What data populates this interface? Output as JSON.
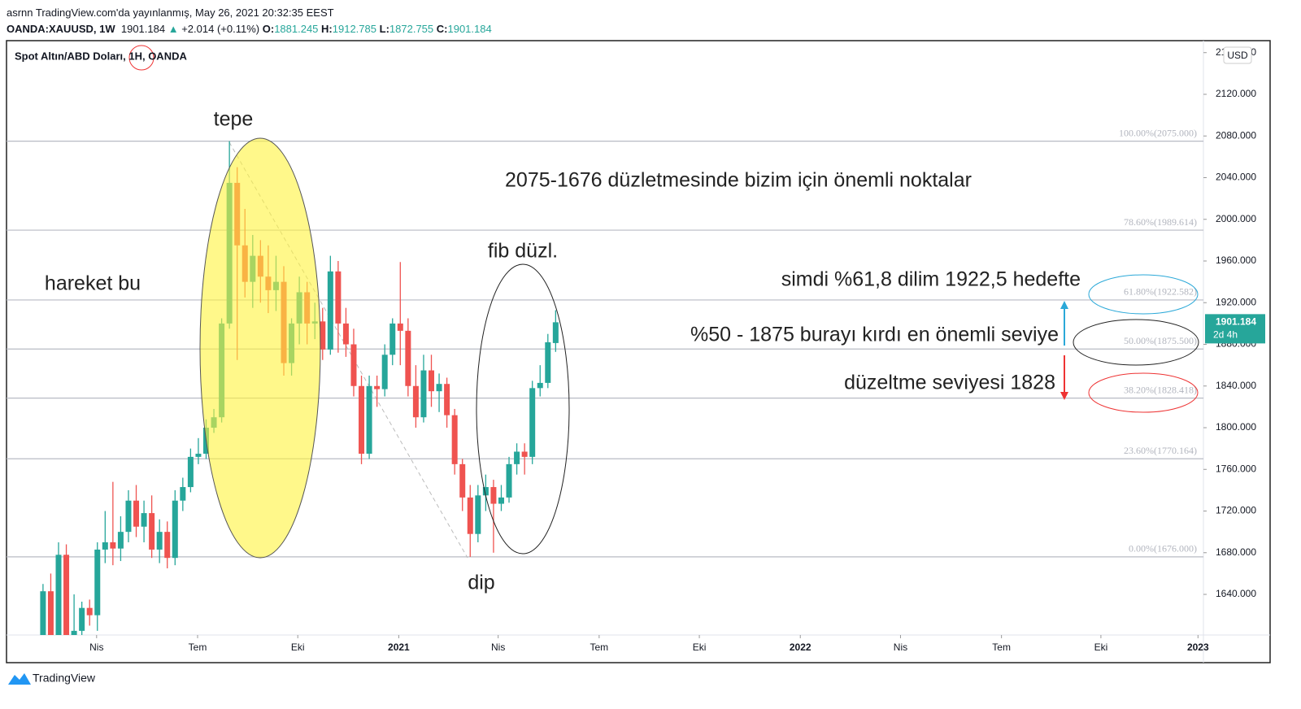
{
  "header": {
    "published": "asrnn TradingView.com'da yayınlanmış, May 26, 2021 20:32:35 EEST",
    "symbol": "OANDA:XAUUSD, 1W",
    "last": "1901.184",
    "arrow": "▲",
    "change": "+2.014 (+0.11%)",
    "o_label": "O:",
    "o": "1881.245",
    "h_label": "H:",
    "h": "1912.785",
    "l_label": "L:",
    "l": "1872.755",
    "c_label": "C:",
    "c": "1901.184"
  },
  "footer": "TradingView",
  "chart_data": {
    "type": "candlestick",
    "title": "Spot Altın/ABD Doları, 1H, OANDA",
    "currency": "USD",
    "up_color": "#26a69a",
    "down_color": "#ef5350",
    "x": [
      0,
      1,
      2,
      3,
      4,
      5,
      6,
      7,
      8,
      9,
      10,
      11,
      12,
      13,
      14,
      15,
      16,
      17,
      18,
      19,
      20,
      21,
      22,
      23,
      24,
      25,
      26,
      27,
      28,
      29,
      30,
      31,
      32,
      33,
      34,
      35,
      36,
      37,
      38,
      39,
      40,
      41,
      42,
      43,
      44,
      45,
      46,
      47,
      48,
      49,
      50,
      51,
      52,
      53,
      54,
      55,
      56,
      57,
      58,
      59,
      60,
      61,
      62,
      63,
      64,
      65,
      66
    ],
    "candles": [
      [
        1590,
        1650,
        1580,
        1643
      ],
      [
        1643,
        1660,
        1580,
        1590
      ],
      [
        1590,
        1690,
        1570,
        1678
      ],
      [
        1678,
        1688,
        1580,
        1590
      ],
      [
        1590,
        1640,
        1575,
        1605
      ],
      [
        1605,
        1633,
        1598,
        1627
      ],
      [
        1627,
        1635,
        1610,
        1620
      ],
      [
        1620,
        1690,
        1605,
        1683
      ],
      [
        1683,
        1720,
        1670,
        1690
      ],
      [
        1690,
        1748,
        1668,
        1684
      ],
      [
        1684,
        1715,
        1672,
        1700
      ],
      [
        1700,
        1740,
        1690,
        1730
      ],
      [
        1730,
        1745,
        1695,
        1705
      ],
      [
        1705,
        1730,
        1690,
        1718
      ],
      [
        1718,
        1735,
        1675,
        1683
      ],
      [
        1683,
        1712,
        1670,
        1700
      ],
      [
        1700,
        1710,
        1665,
        1675
      ],
      [
        1675,
        1740,
        1668,
        1730
      ],
      [
        1730,
        1752,
        1720,
        1743
      ],
      [
        1743,
        1780,
        1738,
        1772
      ],
      [
        1772,
        1790,
        1765,
        1775
      ],
      [
        1775,
        1808,
        1770,
        1800
      ],
      [
        1800,
        1818,
        1795,
        1810
      ],
      [
        1810,
        1905,
        1805,
        1900
      ],
      [
        1900,
        2075,
        1895,
        2035
      ],
      [
        2035,
        2050,
        1865,
        1975
      ],
      [
        1975,
        2010,
        1925,
        1940
      ],
      [
        1940,
        1985,
        1915,
        1965
      ],
      [
        1965,
        1980,
        1920,
        1945
      ],
      [
        1945,
        1975,
        1910,
        1932
      ],
      [
        1932,
        1965,
        1912,
        1940
      ],
      [
        1940,
        1955,
        1850,
        1862
      ],
      [
        1862,
        1905,
        1850,
        1900
      ],
      [
        1900,
        1945,
        1880,
        1930
      ],
      [
        1930,
        1940,
        1880,
        1900
      ],
      [
        1900,
        1920,
        1885,
        1902
      ],
      [
        1902,
        1915,
        1865,
        1875
      ],
      [
        1875,
        1965,
        1870,
        1950
      ],
      [
        1950,
        1960,
        1872,
        1900
      ],
      [
        1900,
        1915,
        1868,
        1880
      ],
      [
        1880,
        1895,
        1830,
        1840
      ],
      [
        1840,
        1850,
        1765,
        1775
      ],
      [
        1775,
        1850,
        1770,
        1840
      ],
      [
        1840,
        1850,
        1820,
        1837
      ],
      [
        1837,
        1880,
        1830,
        1870
      ],
      [
        1870,
        1905,
        1860,
        1900
      ],
      [
        1900,
        1959,
        1860,
        1893
      ],
      [
        1893,
        1905,
        1830,
        1840
      ],
      [
        1840,
        1860,
        1800,
        1810
      ],
      [
        1810,
        1870,
        1805,
        1855
      ],
      [
        1855,
        1870,
        1820,
        1835
      ],
      [
        1835,
        1852,
        1815,
        1842
      ],
      [
        1842,
        1848,
        1800,
        1812
      ],
      [
        1812,
        1818,
        1755,
        1765
      ],
      [
        1765,
        1770,
        1720,
        1733
      ],
      [
        1733,
        1745,
        1676,
        1698
      ],
      [
        1698,
        1745,
        1690,
        1735
      ],
      [
        1735,
        1755,
        1720,
        1743
      ],
      [
        1743,
        1750,
        1680,
        1727
      ],
      [
        1727,
        1745,
        1720,
        1733
      ],
      [
        1733,
        1772,
        1728,
        1765
      ],
      [
        1765,
        1785,
        1755,
        1777
      ],
      [
        1777,
        1785,
        1755,
        1772
      ],
      [
        1772,
        1845,
        1765,
        1838
      ],
      [
        1838,
        1860,
        1830,
        1843
      ],
      [
        1843,
        1890,
        1838,
        1882
      ],
      [
        1881.245,
        1912.785,
        1872.755,
        1901.184
      ]
    ],
    "xlim": [
      -4.7,
      149.4
    ],
    "xticks": [
      {
        "value": 6.9,
        "label": "Nis"
      },
      {
        "value": 19.9,
        "label": "Tem"
      },
      {
        "value": 32.8,
        "label": "Eki"
      },
      {
        "value": 45.8,
        "label": "2021"
      },
      {
        "value": 58.6,
        "label": "Nis"
      },
      {
        "value": 71.6,
        "label": "Tem"
      },
      {
        "value": 84.5,
        "label": "Eki"
      },
      {
        "value": 97.5,
        "label": "2022"
      },
      {
        "value": 110.4,
        "label": "Nis"
      },
      {
        "value": 123.4,
        "label": "Tem"
      },
      {
        "value": 136.2,
        "label": "Eki"
      },
      {
        "value": 148.7,
        "label": "2023"
      }
    ],
    "ylim": [
      1601,
      2171.5
    ],
    "yticks": [
      {
        "value": 1640,
        "label": "1640.000"
      },
      {
        "value": 1680,
        "label": "1680.000"
      },
      {
        "value": 1720,
        "label": "1720.000"
      },
      {
        "value": 1760,
        "label": "1760.000"
      },
      {
        "value": 1800,
        "label": "1800.000"
      },
      {
        "value": 1840,
        "label": "1840.000"
      },
      {
        "value": 1880,
        "label": "1880.000"
      },
      {
        "value": 1920,
        "label": "1920.000"
      },
      {
        "value": 1960,
        "label": "1960.000"
      },
      {
        "value": 2000,
        "label": "2000.000"
      },
      {
        "value": 2040,
        "label": "2040.000"
      },
      {
        "value": 2080,
        "label": "2080.000"
      },
      {
        "value": 2120,
        "label": "2120.000"
      },
      {
        "value": 2160,
        "label": "2160.000"
      }
    ],
    "fib_levels": [
      {
        "value": 2075,
        "label": "100.00%(2075.000)"
      },
      {
        "value": 1989.614,
        "label": "78.60%(1989.614)"
      },
      {
        "value": 1922.582,
        "label": "61.80%(1922.582)"
      },
      {
        "value": 1875.5,
        "label": "50.00%(1875.500)"
      },
      {
        "value": 1828.418,
        "label": "38.20%(1828.418)"
      },
      {
        "value": 1770.164,
        "label": "23.60%(1770.164)"
      },
      {
        "value": 1676,
        "label": "0.00%(1676.000)"
      }
    ],
    "last_price": {
      "value": 1901.184,
      "label": "1901.184",
      "countdown": "2d 4h"
    },
    "annotations": [
      "tepe",
      "hareket bu",
      "2075-1676 düzletmesinde bizim için önemli noktalar",
      "fib düzl.",
      "simdi %61,8 dilim 1922,5 hedefte",
      "%50 - 1875 burayı kırdı en önemli seviye",
      "düzeltme seviyesi 1828",
      "dip"
    ]
  }
}
